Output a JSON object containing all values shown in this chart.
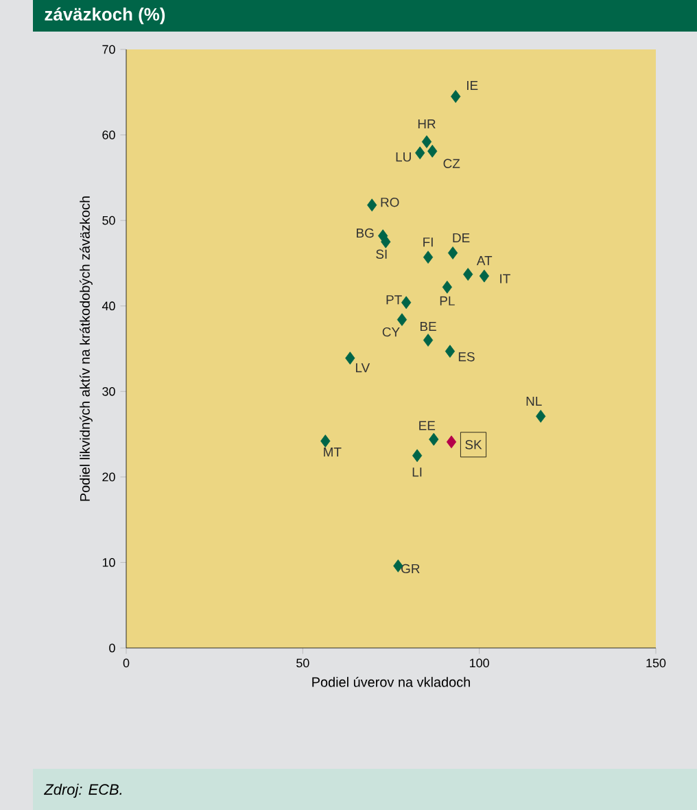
{
  "chart_data": {
    "type": "scatter",
    "title": "záväzkoch (%)",
    "xlabel": "Podiel úverov na vkladoch",
    "ylabel": "Podiel likvidných aktív na krátkodobých záväzkoch",
    "xlim": [
      0,
      150
    ],
    "xticks": [
      0,
      50,
      100,
      150
    ],
    "ylim": [
      0,
      70
    ],
    "yticks": [
      0,
      10,
      20,
      30,
      40,
      50,
      60,
      70
    ],
    "marker": "diamond",
    "grid": false,
    "series": [
      {
        "color": "#006548",
        "x": [
          93.3,
          85.1,
          83.2,
          86.7,
          69.6,
          72.7,
          73.5,
          85.5,
          92.5,
          96.8,
          101.4,
          90.9,
          79.3,
          78.1,
          85.5,
          91.7,
          63.4,
          117.4,
          56.4,
          87.1,
          82.4,
          77.0
        ],
        "values": [
          64.5,
          59.2,
          57.9,
          58.1,
          51.8,
          48.2,
          47.5,
          45.7,
          46.2,
          43.7,
          43.5,
          42.2,
          40.4,
          38.4,
          36.0,
          34.7,
          33.9,
          27.1,
          24.2,
          24.4,
          22.5,
          9.6
        ]
      },
      {
        "color": "#b5004a",
        "x": [
          92.1
        ],
        "values": [
          24.1
        ]
      }
    ],
    "annotations": [
      {
        "text": "IE",
        "x": 93.3,
        "y": 64.5
      },
      {
        "text": "HR",
        "x": 85.1,
        "y": 59.2
      },
      {
        "text": "LU",
        "x": 83.2,
        "y": 57.9
      },
      {
        "text": "CZ",
        "x": 86.7,
        "y": 58.1
      },
      {
        "text": "RO",
        "x": 69.6,
        "y": 51.8
      },
      {
        "text": "BG",
        "x": 72.7,
        "y": 48.2
      },
      {
        "text": "SI",
        "x": 73.5,
        "y": 47.5
      },
      {
        "text": "FI",
        "x": 85.5,
        "y": 45.7
      },
      {
        "text": "DE",
        "x": 92.5,
        "y": 46.2
      },
      {
        "text": "AT",
        "x": 96.8,
        "y": 43.7
      },
      {
        "text": "IT",
        "x": 101.4,
        "y": 43.5
      },
      {
        "text": "PL",
        "x": 90.9,
        "y": 42.2
      },
      {
        "text": "PT",
        "x": 79.3,
        "y": 40.4
      },
      {
        "text": "CY",
        "x": 78.1,
        "y": 38.4
      },
      {
        "text": "BE",
        "x": 85.5,
        "y": 36.0
      },
      {
        "text": "ES",
        "x": 91.7,
        "y": 34.7
      },
      {
        "text": "LV",
        "x": 63.4,
        "y": 33.9
      },
      {
        "text": "NL",
        "x": 117.4,
        "y": 27.1
      },
      {
        "text": "MT",
        "x": 56.4,
        "y": 24.2
      },
      {
        "text": "EE",
        "x": 87.1,
        "y": 24.4
      },
      {
        "text": "LI",
        "x": 82.4,
        "y": 22.5
      },
      {
        "text": "GR",
        "x": 77.0,
        "y": 9.6
      },
      {
        "text": "SK",
        "x": 92.1,
        "y": 24.1
      },
      "Zdroj: ECB."
    ]
  }
}
